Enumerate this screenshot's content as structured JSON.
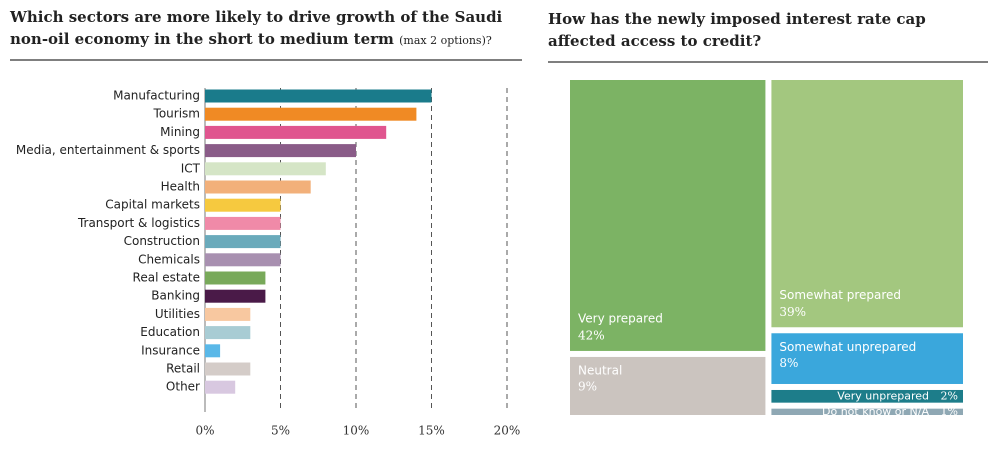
{
  "chart_data": [
    {
      "type": "bar",
      "title": "Which sectors are more likely to drive growth of the Saudi non-oil economy in the short to medium term",
      "title_note": "(max 2 options)?",
      "categories": [
        "Manufacturing",
        "Tourism",
        "Mining",
        "Media, entertainment & sports",
        "ICT",
        "Health",
        "Capital markets",
        "Transport & logistics",
        "Construction",
        "Chemicals",
        "Real estate",
        "Banking",
        "Utilities",
        "Education",
        "Insurance",
        "Retail",
        "Other"
      ],
      "values": [
        15,
        14,
        12,
        10,
        8,
        7,
        5,
        5,
        5,
        5,
        4,
        4,
        3,
        3,
        1,
        3,
        2
      ],
      "colors": [
        "#1a7b8b",
        "#f08a24",
        "#e0558f",
        "#8a5c88",
        "#d5e5c6",
        "#f2b07a",
        "#f6c93f",
        "#f08aa8",
        "#6aaabb",
        "#a890b0",
        "#78a95a",
        "#4a1a48",
        "#f8c8a0",
        "#a8ccd4",
        "#5ab8e8",
        "#d4ccc8",
        "#d8c8e0"
      ],
      "xlim": [
        0,
        20
      ],
      "xticks": [
        {
          "value": 0,
          "label": "0%"
        },
        {
          "value": 5,
          "label": "5%"
        },
        {
          "value": 10,
          "label": "10%"
        },
        {
          "value": 15,
          "label": "15%"
        },
        {
          "value": 20,
          "label": "20%"
        }
      ],
      "grid": true
    },
    {
      "type": "treemap",
      "title": "How has the newly imposed interest rate cap affected access to credit?",
      "categories": [
        "Very prepared",
        "Somewhat prepared",
        "Neutral",
        "Somewhat unprepared",
        "Very unprepared",
        "Do not know or N/A"
      ],
      "values": [
        42,
        39,
        9,
        8,
        2,
        1
      ],
      "value_labels": [
        "42%",
        "39%",
        "9%",
        "8%",
        "2%",
        "1%"
      ],
      "colors": [
        "#7cb364",
        "#a3c77f",
        "#cbc4bf",
        "#3aa7dc",
        "#1d7d8a",
        "#8fa8b4"
      ]
    }
  ]
}
